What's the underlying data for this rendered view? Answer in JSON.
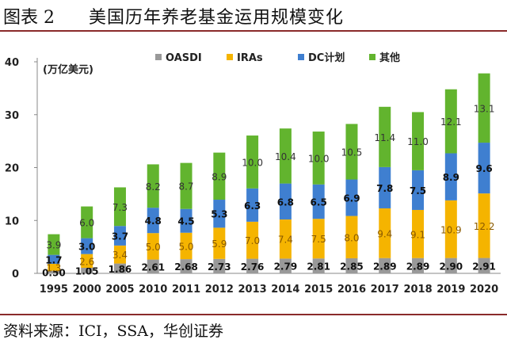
{
  "header": {
    "fig_num": "图表 2",
    "title": "美国历年养老基金运用规模变化"
  },
  "footer": {
    "source": "资料来源：ICI，SSA，华创证券"
  },
  "chart_data": {
    "type": "bar",
    "stacked": true,
    "unit_label": "(万亿美元)",
    "categories": [
      "1995",
      "2000",
      "2005",
      "2010",
      "2011",
      "2012",
      "2013",
      "2014",
      "2015",
      "2016",
      "2017",
      "2018",
      "2019",
      "2020"
    ],
    "series": [
      {
        "name": "OASDI",
        "color": "#999999",
        "values": [
          0.5,
          1.05,
          1.86,
          2.61,
          2.68,
          2.73,
          2.76,
          2.79,
          2.81,
          2.85,
          2.89,
          2.89,
          2.9,
          2.91
        ],
        "labels": [
          "0.50",
          "1.05",
          "1.86",
          "2.61",
          "2.68",
          "2.73",
          "2.76",
          "2.79",
          "2.81",
          "2.85",
          "2.89",
          "2.89",
          "2.90",
          "2.91"
        ],
        "label_color": "#111111"
      },
      {
        "name": "IRAs",
        "color": "#f5b400",
        "values": [
          1.3,
          2.6,
          3.4,
          5.0,
          5.0,
          5.9,
          7.0,
          7.4,
          7.5,
          8.0,
          9.4,
          9.1,
          10.9,
          12.2
        ],
        "labels": [
          "1.3",
          "2.6",
          "3.4",
          "5.0",
          "5.0",
          "5.9",
          "7.0",
          "7.4",
          "7.5",
          "8.0",
          "9.4",
          "9.1",
          "10.9",
          "12.2"
        ],
        "label_color": "#8a5a00"
      },
      {
        "name": "DC计划",
        "color": "#3f7fd0",
        "values": [
          1.7,
          3.0,
          3.7,
          4.8,
          4.5,
          5.3,
          6.3,
          6.8,
          6.5,
          6.9,
          7.8,
          7.5,
          8.9,
          9.6
        ],
        "labels": [
          "1.7",
          "3.0",
          "3.7",
          "4.8",
          "4.5",
          "5.3",
          "6.3",
          "6.8",
          "6.5",
          "6.9",
          "7.8",
          "7.5",
          "8.9",
          "9.6"
        ],
        "label_color": "#111111"
      },
      {
        "name": "其他",
        "color": "#62b42e",
        "values": [
          3.9,
          6.0,
          7.3,
          8.2,
          8.7,
          8.9,
          10.0,
          10.4,
          10.0,
          10.5,
          11.4,
          11.0,
          12.1,
          13.1
        ],
        "labels": [
          "3.9",
          "6.0",
          "7.3",
          "8.2",
          "8.7",
          "8.9",
          "10.0",
          "10.4",
          "10.0",
          "10.5",
          "11.4",
          "11.0",
          "12.1",
          "13.1"
        ],
        "label_color": "#333333"
      }
    ],
    "ylim": [
      0,
      40
    ],
    "yticks": [
      "0",
      "10",
      "20",
      "30",
      "40"
    ],
    "grid": false,
    "legend_position": "top"
  }
}
